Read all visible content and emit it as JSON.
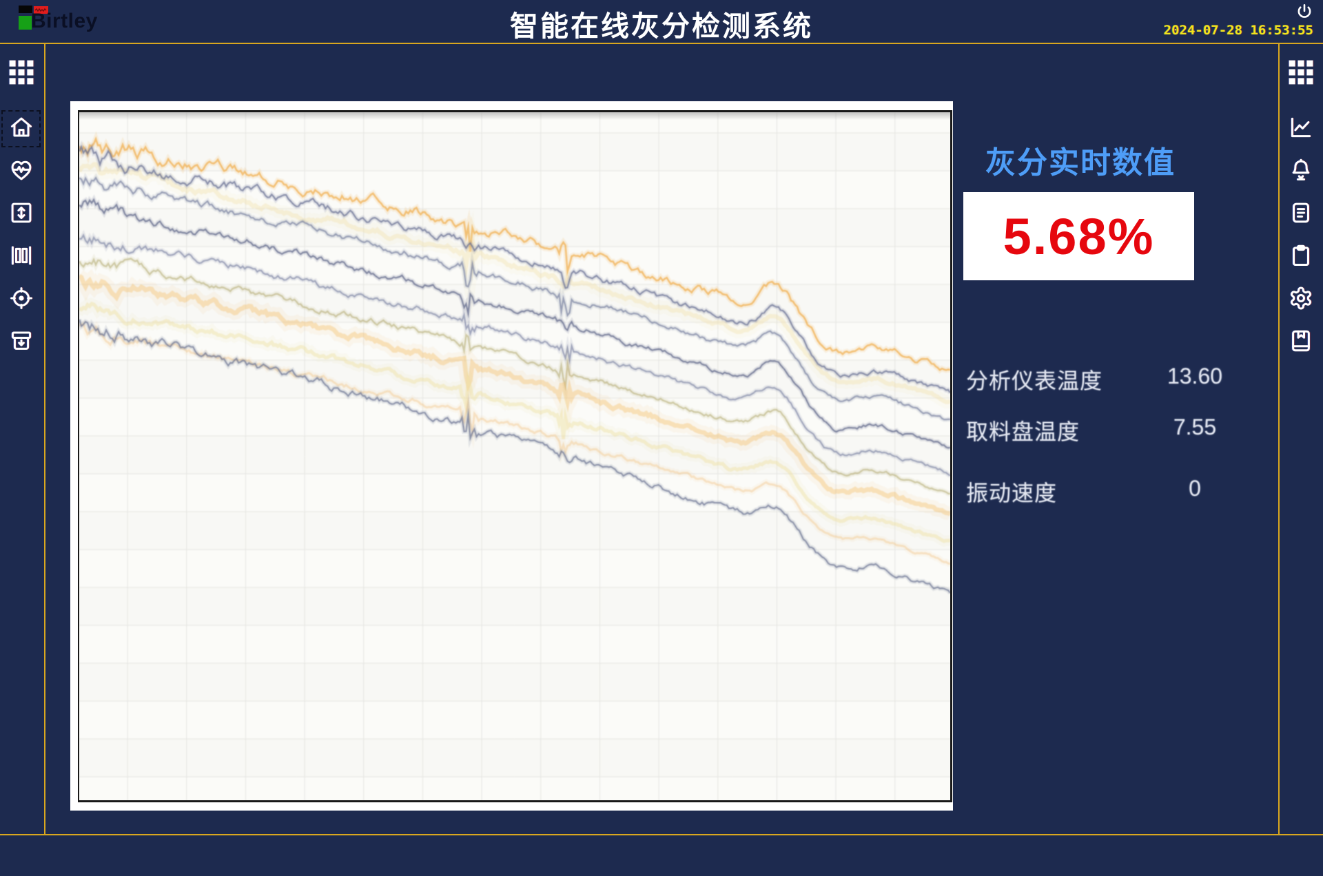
{
  "header": {
    "logo_text": "Birtley",
    "title": "智能在线灰分检测系统",
    "datetime": "2024-07-28 16:53:55"
  },
  "colors": {
    "background": "#1d2a4f",
    "accent_line": "#d9a71f",
    "clock_yellow": "#f2e41d",
    "info_title_blue": "#4e9df7",
    "ash_value_red": "#e6070e",
    "icon_white": "#ffffff"
  },
  "left_sidebar": {
    "items": [
      {
        "name": "apps-grid",
        "icon": "grid-icon",
        "selected": false
      },
      {
        "name": "home",
        "icon": "home-icon",
        "selected": true
      },
      {
        "name": "health-monitor",
        "icon": "heart-pulse-icon",
        "selected": false
      },
      {
        "name": "level-adjust",
        "icon": "vertical-arrows-box-icon",
        "selected": false
      },
      {
        "name": "material-gate",
        "icon": "columns-icon",
        "selected": false
      },
      {
        "name": "calibration",
        "icon": "target-icon",
        "selected": false
      },
      {
        "name": "storage",
        "icon": "archive-down-icon",
        "selected": false
      }
    ]
  },
  "right_sidebar": {
    "items": [
      {
        "name": "apps-grid",
        "icon": "grid-icon",
        "selected": false
      },
      {
        "name": "trend-curves",
        "icon": "line-chart-icon",
        "selected": false
      },
      {
        "name": "alarms",
        "icon": "bell-icon",
        "selected": false
      },
      {
        "name": "records",
        "icon": "document-icon",
        "selected": false
      },
      {
        "name": "reports",
        "icon": "clipboard-icon",
        "selected": false
      },
      {
        "name": "settings",
        "icon": "gear-icon",
        "selected": false
      },
      {
        "name": "saved-data",
        "icon": "book-bookmark-icon",
        "selected": false
      }
    ]
  },
  "info_panel": {
    "title": "灰分实时数值",
    "ash_value": "5.68%",
    "readings": [
      {
        "label": "分析仪表温度",
        "value": "13.60"
      },
      {
        "label": "取料盘温度",
        "value": "7.55"
      },
      {
        "label": "振动速度",
        "value": "0"
      }
    ]
  },
  "chart_data": {
    "type": "line",
    "title": "",
    "axes_labeled": false,
    "note": "unlabeled multi-trace downward trend chart (spectrometer traces), noisy left side, glitch clusters and a wave bump near right",
    "background": "#fbfbf8",
    "grid": {
      "color": "#e6e6e2",
      "v_start": 70,
      "v_step": 85.6,
      "h_start": 30,
      "h_step": 55
    },
    "bow": 28,
    "glitches": [
      {
        "pos": 0.447,
        "strength": 1.0
      },
      {
        "pos": 0.558,
        "strength": 0.85
      }
    ],
    "bump": {
      "rise_pos": 0.8,
      "rise_amp": 40,
      "fall_pos": 0.868,
      "fall_amp": 28
    },
    "series": [
      {
        "name": "orange-top",
        "color": "#f1a437",
        "start": 0.042,
        "end": 0.375,
        "width": 2.6,
        "opacity": 0.62,
        "noise": 21,
        "bump": 1.0
      },
      {
        "name": "pale-yellow-upper",
        "color": "#f2dc9f",
        "start": 0.08,
        "end": 0.42,
        "width": 6.0,
        "opacity": 0.32,
        "noise": 12,
        "bump": 0.9
      },
      {
        "name": "navy-1",
        "color": "#6b7396",
        "start": 0.062,
        "end": 0.41,
        "width": 2.2,
        "opacity": 0.75,
        "noise": 17,
        "bump": 1.0
      },
      {
        "name": "navy-2",
        "color": "#78809f",
        "start": 0.097,
        "end": 0.45,
        "width": 2.2,
        "opacity": 0.7,
        "noise": 15,
        "bump": 1.0
      },
      {
        "name": "navy-3",
        "color": "#616a8b",
        "start": 0.137,
        "end": 0.49,
        "width": 2.2,
        "opacity": 0.75,
        "noise": 14,
        "bump": 1.0
      },
      {
        "name": "navy-4",
        "color": "#7b83a3",
        "start": 0.177,
        "end": 0.525,
        "width": 2.2,
        "opacity": 0.65,
        "noise": 13,
        "bump": 1.0
      },
      {
        "name": "khaki",
        "color": "#b2aa6f",
        "start": 0.212,
        "end": 0.555,
        "width": 2.4,
        "opacity": 0.55,
        "noise": 12,
        "bump": 0.85
      },
      {
        "name": "orange-soft",
        "color": "#f4bc63",
        "start": 0.24,
        "end": 0.585,
        "width": 6.5,
        "opacity": 0.38,
        "noise": 13,
        "bump": 0.8
      },
      {
        "name": "pale-yellow-lower",
        "color": "#efdf9e",
        "start": 0.28,
        "end": 0.625,
        "width": 5.0,
        "opacity": 0.42,
        "noise": 11,
        "bump": 0.75
      },
      {
        "name": "orange-faint",
        "color": "#f3c382",
        "start": 0.315,
        "end": 0.655,
        "width": 3.0,
        "opacity": 0.4,
        "noise": 11,
        "bump": 0.7
      },
      {
        "name": "navy-bottom",
        "color": "#6e7694",
        "start": 0.308,
        "end": 0.7,
        "width": 2.2,
        "opacity": 0.72,
        "noise": 16,
        "bump": 0.8
      }
    ]
  }
}
